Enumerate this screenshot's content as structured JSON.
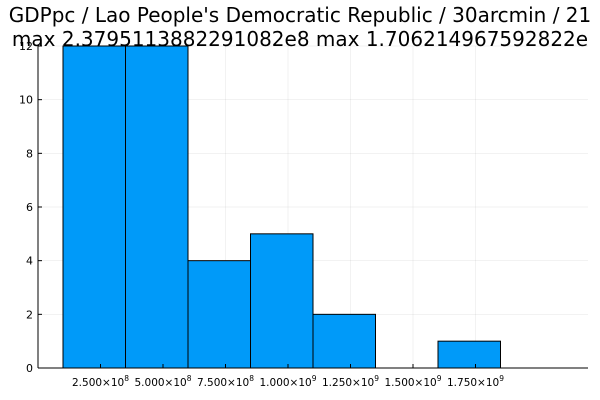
{
  "chart_data": {
    "type": "bar",
    "title_line1": "GDPpc / Lao People's Democratic Republic / 30arcmin / 21",
    "title_line2": "max 2.3795113882291082e8  max 1.706214967592822e",
    "bin_edges": [
      100000000,
      350000000,
      600000000,
      850000000,
      1100000000,
      1350000000,
      1600000000,
      1850000000
    ],
    "values": [
      12,
      12,
      4,
      5,
      2,
      0,
      1
    ],
    "xlim": [
      0,
      2200000000
    ],
    "ylim": [
      0,
      12
    ],
    "x_ticks": [
      {
        "value": 250000000,
        "mantissa": "2.500",
        "exponent": "8"
      },
      {
        "value": 500000000,
        "mantissa": "5.000",
        "exponent": "8"
      },
      {
        "value": 750000000,
        "mantissa": "7.500",
        "exponent": "8"
      },
      {
        "value": 1000000000,
        "mantissa": "1.000",
        "exponent": "9"
      },
      {
        "value": 1250000000,
        "mantissa": "1.250",
        "exponent": "9"
      },
      {
        "value": 1500000000,
        "mantissa": "1.500",
        "exponent": "9"
      },
      {
        "value": 1750000000,
        "mantissa": "1.750",
        "exponent": "9"
      }
    ],
    "y_ticks": [
      0,
      2,
      4,
      6,
      8,
      10,
      12
    ],
    "grid": true,
    "bar_color": "#009af9",
    "bar_edge_color": "#000000",
    "legend": "none"
  }
}
